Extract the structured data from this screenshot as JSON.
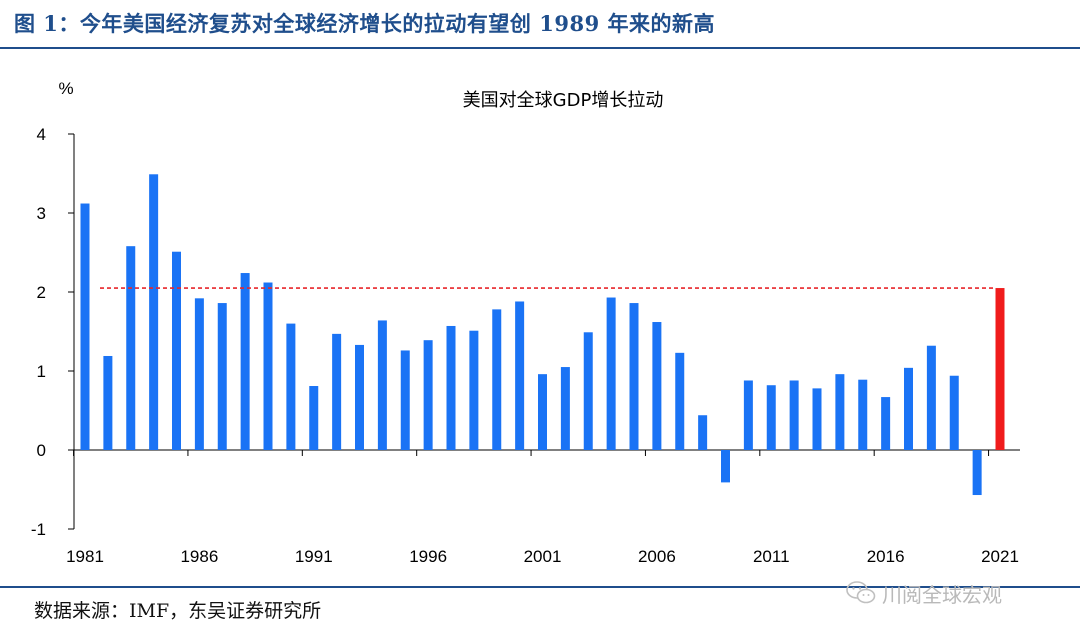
{
  "figure": {
    "caption": "图 1：今年美国经济复苏对全球经济增长的拉动有望创 1989 年来的新高",
    "source": "数据来源：IMF，东吴证券研究所",
    "watermark": "川阅全球宏观",
    "watermark_icon": "wechat-icon"
  },
  "colors": {
    "bar": "#1a73f5",
    "highlight": "#f01c1c",
    "reference_line": "#e8262a",
    "rule": "#1f4e8c"
  },
  "chart_data": {
    "type": "bar",
    "title": "美国对全球GDP增长拉动",
    "ylabel": "%",
    "xlabel": "",
    "ylim": [
      -1,
      4
    ],
    "yticks": [
      "-1",
      "0",
      "1",
      "2",
      "3",
      "4"
    ],
    "xtick_labels": [
      "1981",
      "1986",
      "1991",
      "1996",
      "2001",
      "2006",
      "2011",
      "2016",
      "2021"
    ],
    "grid": false,
    "categories": [
      "1981",
      "1982",
      "1983",
      "1984",
      "1985",
      "1986",
      "1987",
      "1988",
      "1989",
      "1990",
      "1991",
      "1992",
      "1993",
      "1994",
      "1995",
      "1996",
      "1997",
      "1998",
      "1999",
      "2000",
      "2001",
      "2002",
      "2003",
      "2004",
      "2005",
      "2006",
      "2007",
      "2008",
      "2009",
      "2010",
      "2011",
      "2012",
      "2013",
      "2014",
      "2015",
      "2016",
      "2017",
      "2018",
      "2019",
      "2020",
      "2021"
    ],
    "values": [
      3.12,
      1.19,
      2.58,
      3.49,
      2.51,
      1.92,
      1.86,
      2.24,
      2.12,
      1.6,
      0.81,
      1.47,
      1.33,
      1.64,
      1.26,
      1.39,
      1.57,
      1.51,
      1.78,
      1.88,
      0.96,
      1.05,
      1.49,
      1.93,
      1.86,
      1.62,
      1.23,
      0.44,
      -0.41,
      0.88,
      0.82,
      0.88,
      0.78,
      0.96,
      0.89,
      0.67,
      1.04,
      1.32,
      0.94,
      -0.57,
      2.05
    ],
    "highlight_category": "2021",
    "reference_line": {
      "y": 2.05,
      "style": "dashed"
    }
  }
}
